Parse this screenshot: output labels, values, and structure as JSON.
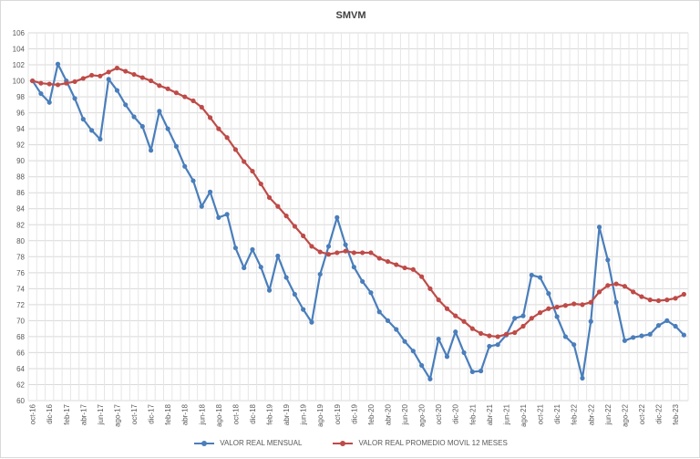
{
  "chart_data": {
    "type": "line",
    "title": "SMVM",
    "xlabel": "",
    "ylabel": "",
    "ylim": [
      60,
      106
    ],
    "ystep": 2,
    "grid": true,
    "legend_position": "bottom",
    "x_tick_labels": [
      "oct-16",
      "dic-16",
      "feb-17",
      "abr-17",
      "jun-17",
      "ago-17",
      "oct-17",
      "dic-17",
      "feb-18",
      "abr-18",
      "jun-18",
      "ago-18",
      "oct-18",
      "dic-18",
      "feb-19",
      "abr-19",
      "jun-19",
      "ago-19",
      "oct-19",
      "dic-19",
      "feb-20",
      "abr-20",
      "jun-20",
      "ago-20",
      "oct-20",
      "dic-20",
      "feb-21",
      "abr-21",
      "jun-21",
      "ago-21",
      "oct-21",
      "dic-21",
      "feb-22",
      "abr-22",
      "jun-22",
      "ago-22",
      "oct-22",
      "dic-22",
      "feb-23"
    ],
    "categories": [
      "oct-16",
      "nov-16",
      "dic-16",
      "ene-17",
      "feb-17",
      "mar-17",
      "abr-17",
      "may-17",
      "jun-17",
      "jul-17",
      "ago-17",
      "sep-17",
      "oct-17",
      "nov-17",
      "dic-17",
      "ene-18",
      "feb-18",
      "mar-18",
      "abr-18",
      "may-18",
      "jun-18",
      "jul-18",
      "ago-18",
      "sep-18",
      "oct-18",
      "nov-18",
      "dic-18",
      "ene-19",
      "feb-19",
      "mar-19",
      "abr-19",
      "may-19",
      "jun-19",
      "jul-19",
      "ago-19",
      "sep-19",
      "oct-19",
      "nov-19",
      "dic-19",
      "ene-20",
      "feb-20",
      "mar-20",
      "abr-20",
      "may-20",
      "jun-20",
      "jul-20",
      "ago-20",
      "sep-20",
      "oct-20",
      "nov-20",
      "dic-20",
      "ene-21",
      "feb-21",
      "mar-21",
      "abr-21",
      "may-21",
      "jun-21",
      "jul-21",
      "ago-21",
      "sep-21",
      "oct-21",
      "nov-21",
      "dic-21",
      "ene-22",
      "feb-22",
      "mar-22",
      "abr-22",
      "may-22",
      "jun-22",
      "jul-22",
      "ago-22",
      "sep-22",
      "oct-22",
      "nov-22",
      "dic-22",
      "ene-23",
      "feb-23",
      "mar-23"
    ],
    "series": [
      {
        "name": "VALOR REAL MENSUAL",
        "color": "#4a7ebb",
        "values": [
          100.0,
          98.4,
          97.3,
          102.1,
          100.0,
          97.8,
          95.2,
          93.8,
          92.7,
          100.2,
          98.8,
          97.0,
          95.5,
          94.3,
          91.3,
          96.2,
          94.0,
          91.8,
          89.3,
          87.5,
          84.3,
          86.1,
          82.9,
          83.3,
          79.1,
          76.6,
          78.9,
          76.7,
          73.8,
          78.1,
          75.4,
          73.3,
          71.4,
          69.8,
          75.8,
          79.3,
          82.9,
          79.5,
          76.7,
          74.9,
          73.5,
          71.1,
          70.0,
          68.9,
          67.4,
          66.2,
          64.4,
          62.7,
          67.7,
          65.5,
          68.6,
          66.0,
          63.6,
          63.7,
          66.8,
          67.0,
          68.2,
          70.3,
          70.6,
          75.7,
          75.4,
          73.4,
          70.5,
          68.0,
          67.0,
          62.8,
          69.9,
          81.7,
          77.6,
          72.3,
          67.5,
          67.9,
          68.1,
          68.3,
          69.4,
          70.0,
          69.3,
          68.2
        ]
      },
      {
        "name": "VALOR REAL PROMEDIO MOVIL 12 MESES",
        "color": "#be4b48",
        "values": [
          100.0,
          99.7,
          99.6,
          99.5,
          99.7,
          99.9,
          100.3,
          100.7,
          100.6,
          101.1,
          101.6,
          101.2,
          100.8,
          100.4,
          100.0,
          99.4,
          99.0,
          98.5,
          98.0,
          97.5,
          96.7,
          95.4,
          94.0,
          92.9,
          91.4,
          89.9,
          88.7,
          87.1,
          85.4,
          84.3,
          83.1,
          81.8,
          80.6,
          79.3,
          78.6,
          78.3,
          78.5,
          78.7,
          78.5,
          78.5,
          78.5,
          77.8,
          77.4,
          77.0,
          76.6,
          76.4,
          75.5,
          74.0,
          72.6,
          71.5,
          70.6,
          69.9,
          69.0,
          68.4,
          68.1,
          68.0,
          68.3,
          68.5,
          69.3,
          70.3,
          71.0,
          71.5,
          71.7,
          71.9,
          72.1,
          72.0,
          72.3,
          73.6,
          74.4,
          74.6,
          74.3,
          73.6,
          73.0,
          72.6,
          72.5,
          72.6,
          72.8,
          73.3
        ]
      }
    ]
  }
}
